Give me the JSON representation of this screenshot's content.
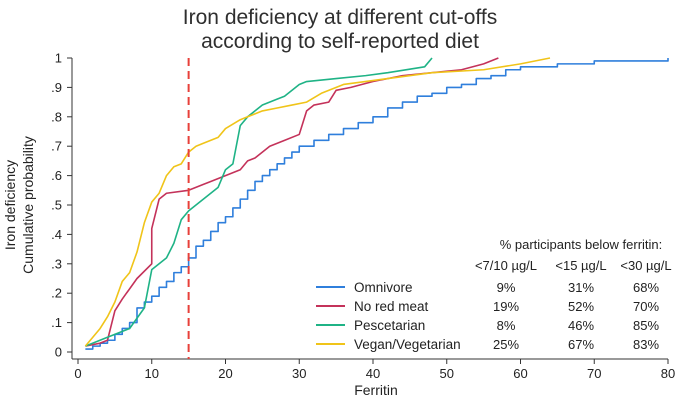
{
  "chart_data": {
    "type": "line",
    "title_lines": [
      "Iron deficiency at different cut-offs",
      "according to self-reported diet"
    ],
    "xlabel": "Ferritin",
    "ylabel_lines": [
      "Iron deficiency",
      "Cumulative probability"
    ],
    "xlim": [
      0,
      80
    ],
    "ylim": [
      0,
      1
    ],
    "x_ticks": [
      0,
      10,
      20,
      30,
      40,
      50,
      60,
      70,
      80
    ],
    "y_ticks": [
      0,
      0.1,
      0.2,
      0.3,
      0.4,
      0.5,
      0.6,
      0.7,
      0.8,
      0.9,
      1
    ],
    "y_tick_labels": [
      "0",
      ".1",
      ".2",
      ".3",
      ".4",
      ".5",
      ".6",
      ".7",
      ".8",
      ".9",
      "1"
    ],
    "cutoff_line": {
      "x": 15,
      "color": "#e8403a",
      "style": "dashed"
    },
    "series": [
      {
        "name": "Omnivore",
        "color": "#2f7fdc",
        "step": true,
        "points": [
          [
            1,
            0.01
          ],
          [
            2,
            0.02
          ],
          [
            3,
            0.03
          ],
          [
            4,
            0.04
          ],
          [
            5,
            0.06
          ],
          [
            6,
            0.08
          ],
          [
            7,
            0.1
          ],
          [
            8,
            0.15
          ],
          [
            9,
            0.17
          ],
          [
            10,
            0.19
          ],
          [
            11,
            0.22
          ],
          [
            12,
            0.24
          ],
          [
            13,
            0.27
          ],
          [
            14,
            0.29
          ],
          [
            15,
            0.32
          ],
          [
            16,
            0.36
          ],
          [
            17,
            0.38
          ],
          [
            18,
            0.41
          ],
          [
            19,
            0.44
          ],
          [
            20,
            0.46
          ],
          [
            21,
            0.49
          ],
          [
            22,
            0.52
          ],
          [
            23,
            0.55
          ],
          [
            24,
            0.58
          ],
          [
            25,
            0.6
          ],
          [
            26,
            0.62
          ],
          [
            27,
            0.64
          ],
          [
            28,
            0.66
          ],
          [
            29,
            0.68
          ],
          [
            30,
            0.7
          ],
          [
            32,
            0.72
          ],
          [
            34,
            0.74
          ],
          [
            36,
            0.76
          ],
          [
            38,
            0.78
          ],
          [
            40,
            0.8
          ],
          [
            42,
            0.83
          ],
          [
            44,
            0.85
          ],
          [
            46,
            0.87
          ],
          [
            48,
            0.88
          ],
          [
            50,
            0.9
          ],
          [
            52,
            0.91
          ],
          [
            54,
            0.93
          ],
          [
            56,
            0.94
          ],
          [
            58,
            0.96
          ],
          [
            60,
            0.97
          ],
          [
            65,
            0.98
          ],
          [
            70,
            0.99
          ],
          [
            80,
            1.0
          ]
        ]
      },
      {
        "name": "No red meat",
        "color": "#c4325a",
        "step": false,
        "points": [
          [
            1,
            0.02
          ],
          [
            3,
            0.03
          ],
          [
            4,
            0.04
          ],
          [
            5,
            0.14
          ],
          [
            6,
            0.18
          ],
          [
            8,
            0.25
          ],
          [
            10,
            0.3
          ],
          [
            10,
            0.42
          ],
          [
            11,
            0.52
          ],
          [
            12,
            0.54
          ],
          [
            15,
            0.55
          ],
          [
            17,
            0.57
          ],
          [
            18,
            0.58
          ],
          [
            20,
            0.6
          ],
          [
            22,
            0.62
          ],
          [
            23,
            0.65
          ],
          [
            24,
            0.66
          ],
          [
            26,
            0.7
          ],
          [
            28,
            0.72
          ],
          [
            30,
            0.74
          ],
          [
            31,
            0.82
          ],
          [
            32,
            0.84
          ],
          [
            34,
            0.85
          ],
          [
            35,
            0.89
          ],
          [
            37,
            0.9
          ],
          [
            40,
            0.92
          ],
          [
            44,
            0.94
          ],
          [
            48,
            0.95
          ],
          [
            52,
            0.96
          ],
          [
            55,
            0.98
          ],
          [
            57,
            1.0
          ]
        ]
      },
      {
        "name": "Pescetarian",
        "color": "#1fb386",
        "step": false,
        "points": [
          [
            1,
            0.02
          ],
          [
            4,
            0.05
          ],
          [
            7,
            0.08
          ],
          [
            9,
            0.15
          ],
          [
            10,
            0.28
          ],
          [
            12,
            0.32
          ],
          [
            13,
            0.37
          ],
          [
            14,
            0.45
          ],
          [
            15,
            0.48
          ],
          [
            17,
            0.52
          ],
          [
            19,
            0.56
          ],
          [
            20,
            0.62
          ],
          [
            21,
            0.64
          ],
          [
            22,
            0.77
          ],
          [
            23,
            0.8
          ],
          [
            24,
            0.82
          ],
          [
            25,
            0.84
          ],
          [
            27,
            0.86
          ],
          [
            28,
            0.87
          ],
          [
            30,
            0.91
          ],
          [
            31,
            0.92
          ],
          [
            35,
            0.93
          ],
          [
            39,
            0.94
          ],
          [
            42,
            0.95
          ],
          [
            47,
            0.97
          ],
          [
            48,
            1.0
          ]
        ]
      },
      {
        "name": "Vegan/Vegetarian",
        "color": "#f0c419",
        "step": false,
        "points": [
          [
            1,
            0.02
          ],
          [
            3,
            0.08
          ],
          [
            4,
            0.12
          ],
          [
            5,
            0.17
          ],
          [
            6,
            0.24
          ],
          [
            7,
            0.27
          ],
          [
            8,
            0.34
          ],
          [
            9,
            0.44
          ],
          [
            10,
            0.51
          ],
          [
            11,
            0.54
          ],
          [
            12,
            0.6
          ],
          [
            13,
            0.63
          ],
          [
            14,
            0.64
          ],
          [
            15,
            0.68
          ],
          [
            16,
            0.7
          ],
          [
            17,
            0.71
          ],
          [
            19,
            0.73
          ],
          [
            20,
            0.76
          ],
          [
            22,
            0.79
          ],
          [
            23,
            0.8
          ],
          [
            25,
            0.82
          ],
          [
            27,
            0.83
          ],
          [
            29,
            0.84
          ],
          [
            31,
            0.85
          ],
          [
            33,
            0.88
          ],
          [
            36,
            0.91
          ],
          [
            42,
            0.93
          ],
          [
            48,
            0.95
          ],
          [
            55,
            0.96
          ],
          [
            60,
            0.98
          ],
          [
            64,
            1.0
          ]
        ]
      }
    ],
    "table": {
      "title": "% participants below ferritin:",
      "columns": [
        "<7/10 µg/L",
        "<15 µg/L",
        "<30 µg/L"
      ],
      "rows": [
        {
          "name": "Omnivore",
          "values": [
            "9%",
            "31%",
            "68%"
          ]
        },
        {
          "name": "No red meat",
          "values": [
            "19%",
            "52%",
            "70%"
          ]
        },
        {
          "name": "Pescetarian",
          "values": [
            "8%",
            "46%",
            "85%"
          ]
        },
        {
          "name": "Vegan/Vegetarian",
          "values": [
            "25%",
            "67%",
            "83%"
          ]
        }
      ]
    }
  }
}
